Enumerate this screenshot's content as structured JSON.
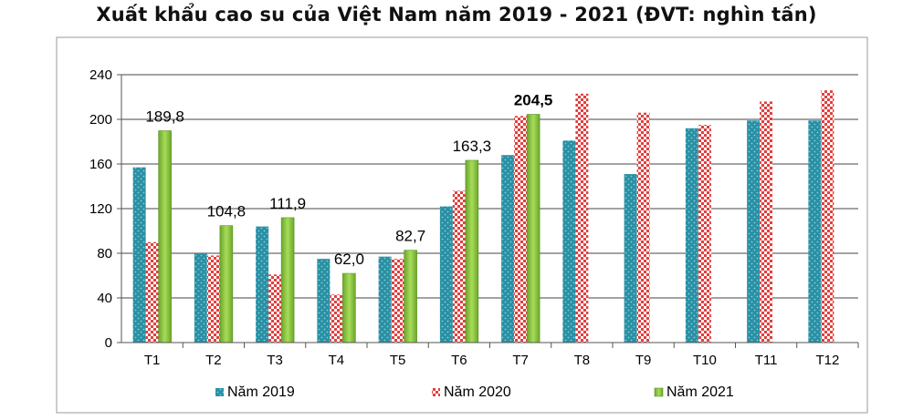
{
  "chart_data": {
    "type": "bar",
    "title": "Xuất khẩu cao su của Việt Nam năm 2019 - 2021 (ĐVT: nghìn tấn)",
    "xlabel": "",
    "ylabel": "",
    "ylim": [
      0,
      240
    ],
    "yticks": [
      "0",
      "40",
      "80",
      "120",
      "160",
      "200",
      "240"
    ],
    "grid": true,
    "legend_position": "bottom",
    "categories": [
      "T1",
      "T2",
      "T3",
      "T4",
      "T5",
      "T6",
      "T7",
      "T8",
      "T9",
      "T10",
      "T11",
      "T12"
    ],
    "series": [
      {
        "name": "Năm 2019",
        "color": "#2a8fa3",
        "values": [
          157,
          80,
          104,
          75,
          77,
          122,
          168,
          181,
          151,
          192,
          199,
          199
        ]
      },
      {
        "name": "Năm 2020",
        "color": "#e0403f",
        "values": [
          90,
          78,
          61,
          43,
          75,
          136,
          203,
          223,
          206,
          195,
          216,
          226
        ]
      },
      {
        "name": "Năm 2021",
        "color": "#8cc63e",
        "values": [
          189.8,
          104.8,
          111.9,
          62.0,
          82.7,
          163.3,
          204.5,
          null,
          null,
          null,
          null,
          null
        ]
      }
    ],
    "data_labels": [
      {
        "category": "T1",
        "text": "189,8",
        "bold": false
      },
      {
        "category": "T2",
        "text": "104,8",
        "bold": false
      },
      {
        "category": "T3",
        "text": "111,9",
        "bold": false
      },
      {
        "category": "T4",
        "text": "62,0",
        "bold": false
      },
      {
        "category": "T5",
        "text": "82,7",
        "bold": false
      },
      {
        "category": "T6",
        "text": "163,3",
        "bold": false
      },
      {
        "category": "T7",
        "text": "204,5",
        "bold": true
      }
    ]
  }
}
